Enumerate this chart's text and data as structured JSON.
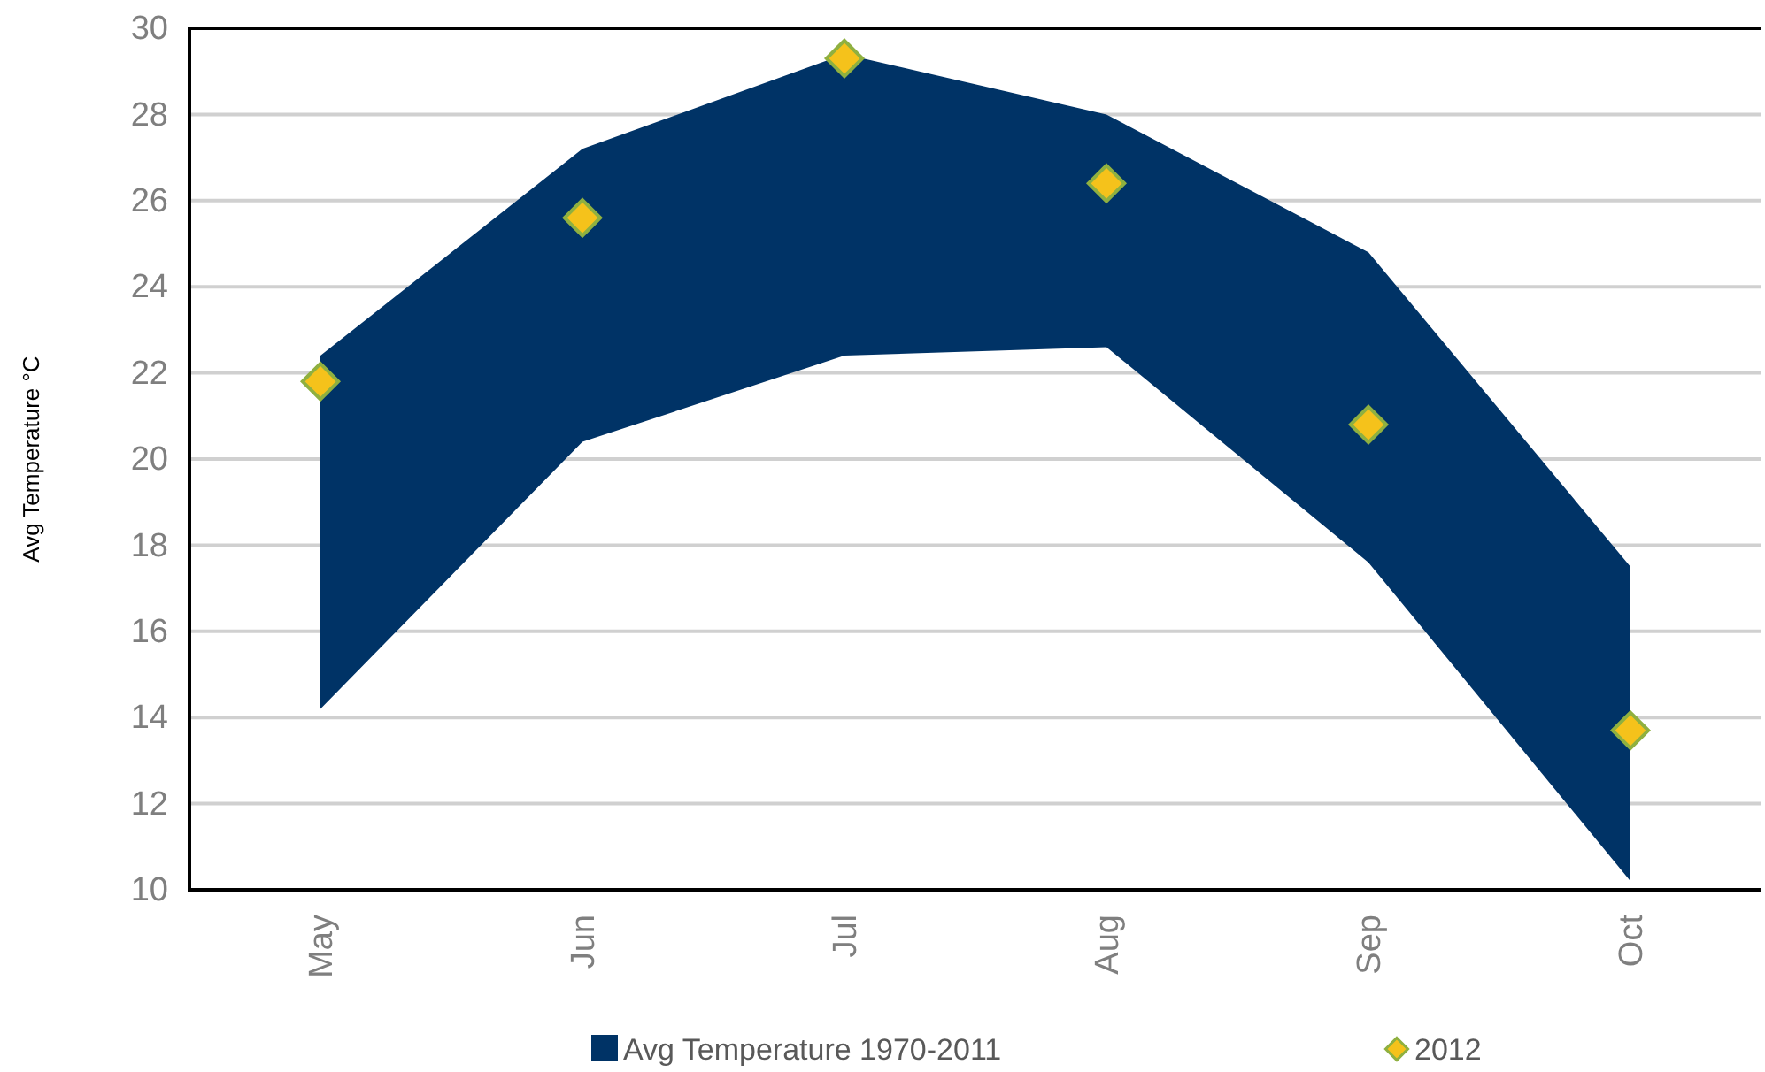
{
  "chart_data": {
    "type": "area",
    "ylabel": "Avg Temperature °C",
    "categories": [
      "May",
      "Jun",
      "Jul",
      "Aug",
      "Sep",
      "Oct"
    ],
    "series": [
      {
        "name": "Avg Temperature 1970-2011",
        "color": "#003366",
        "values": [
          null,
          null,
          null,
          null,
          null,
          null
        ],
        "lower": [
          14.2,
          20.4,
          22.4,
          22.6,
          17.6,
          10.2
        ],
        "upper": [
          22.4,
          27.2,
          29.4,
          28.0,
          24.8,
          17.5
        ]
      },
      {
        "name": "2012",
        "type": "scatter",
        "color": "#f5c21b",
        "marker": "diamond",
        "values": [
          21.8,
          25.6,
          29.3,
          26.4,
          20.8,
          13.7
        ]
      }
    ],
    "ylim": [
      10,
      30
    ],
    "yticks": [
      10,
      12,
      14,
      16,
      18,
      20,
      22,
      24,
      26,
      28,
      30
    ],
    "grid": "y",
    "legend": "bottom"
  }
}
